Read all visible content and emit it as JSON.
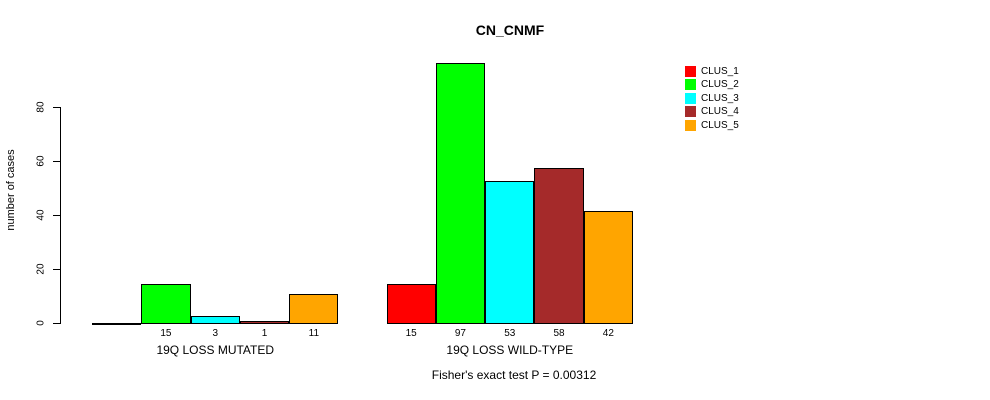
{
  "title": "CN_CNMF",
  "footer": "Fisher's exact test P = 0.00312",
  "chart_data": {
    "type": "bar",
    "title": "CN_CNMF",
    "xlabel": "",
    "ylabel": "number of cases",
    "ylim": [
      0,
      80
    ],
    "yticks": [
      0,
      20,
      40,
      60,
      80
    ],
    "grid": false,
    "legend_position": "right",
    "series": [
      {
        "name": "CLUS_1",
        "color": "#FF0000",
        "values": [
          0,
          15
        ]
      },
      {
        "name": "CLUS_2",
        "color": "#00FF00",
        "values": [
          15,
          97
        ]
      },
      {
        "name": "CLUS_3",
        "color": "#00FFFF",
        "values": [
          3,
          53
        ]
      },
      {
        "name": "CLUS_4",
        "color": "#A52A2A",
        "values": [
          1,
          58
        ]
      },
      {
        "name": "CLUS_5",
        "color": "#FFA500",
        "values": [
          11,
          42
        ]
      }
    ],
    "groups": [
      {
        "label": "19Q LOSS MUTATED",
        "values": [
          0,
          15,
          3,
          1,
          11
        ],
        "value_labels": [
          "",
          "15",
          "3",
          "1",
          "11"
        ]
      },
      {
        "label": "19Q LOSS WILD-TYPE",
        "values": [
          15,
          97,
          53,
          58,
          42
        ],
        "value_labels": [
          "15",
          "97",
          "53",
          "58",
          "42"
        ]
      }
    ],
    "annotation": "Fisher's exact test P = 0.00312",
    "bar_border_color": "#000000"
  }
}
